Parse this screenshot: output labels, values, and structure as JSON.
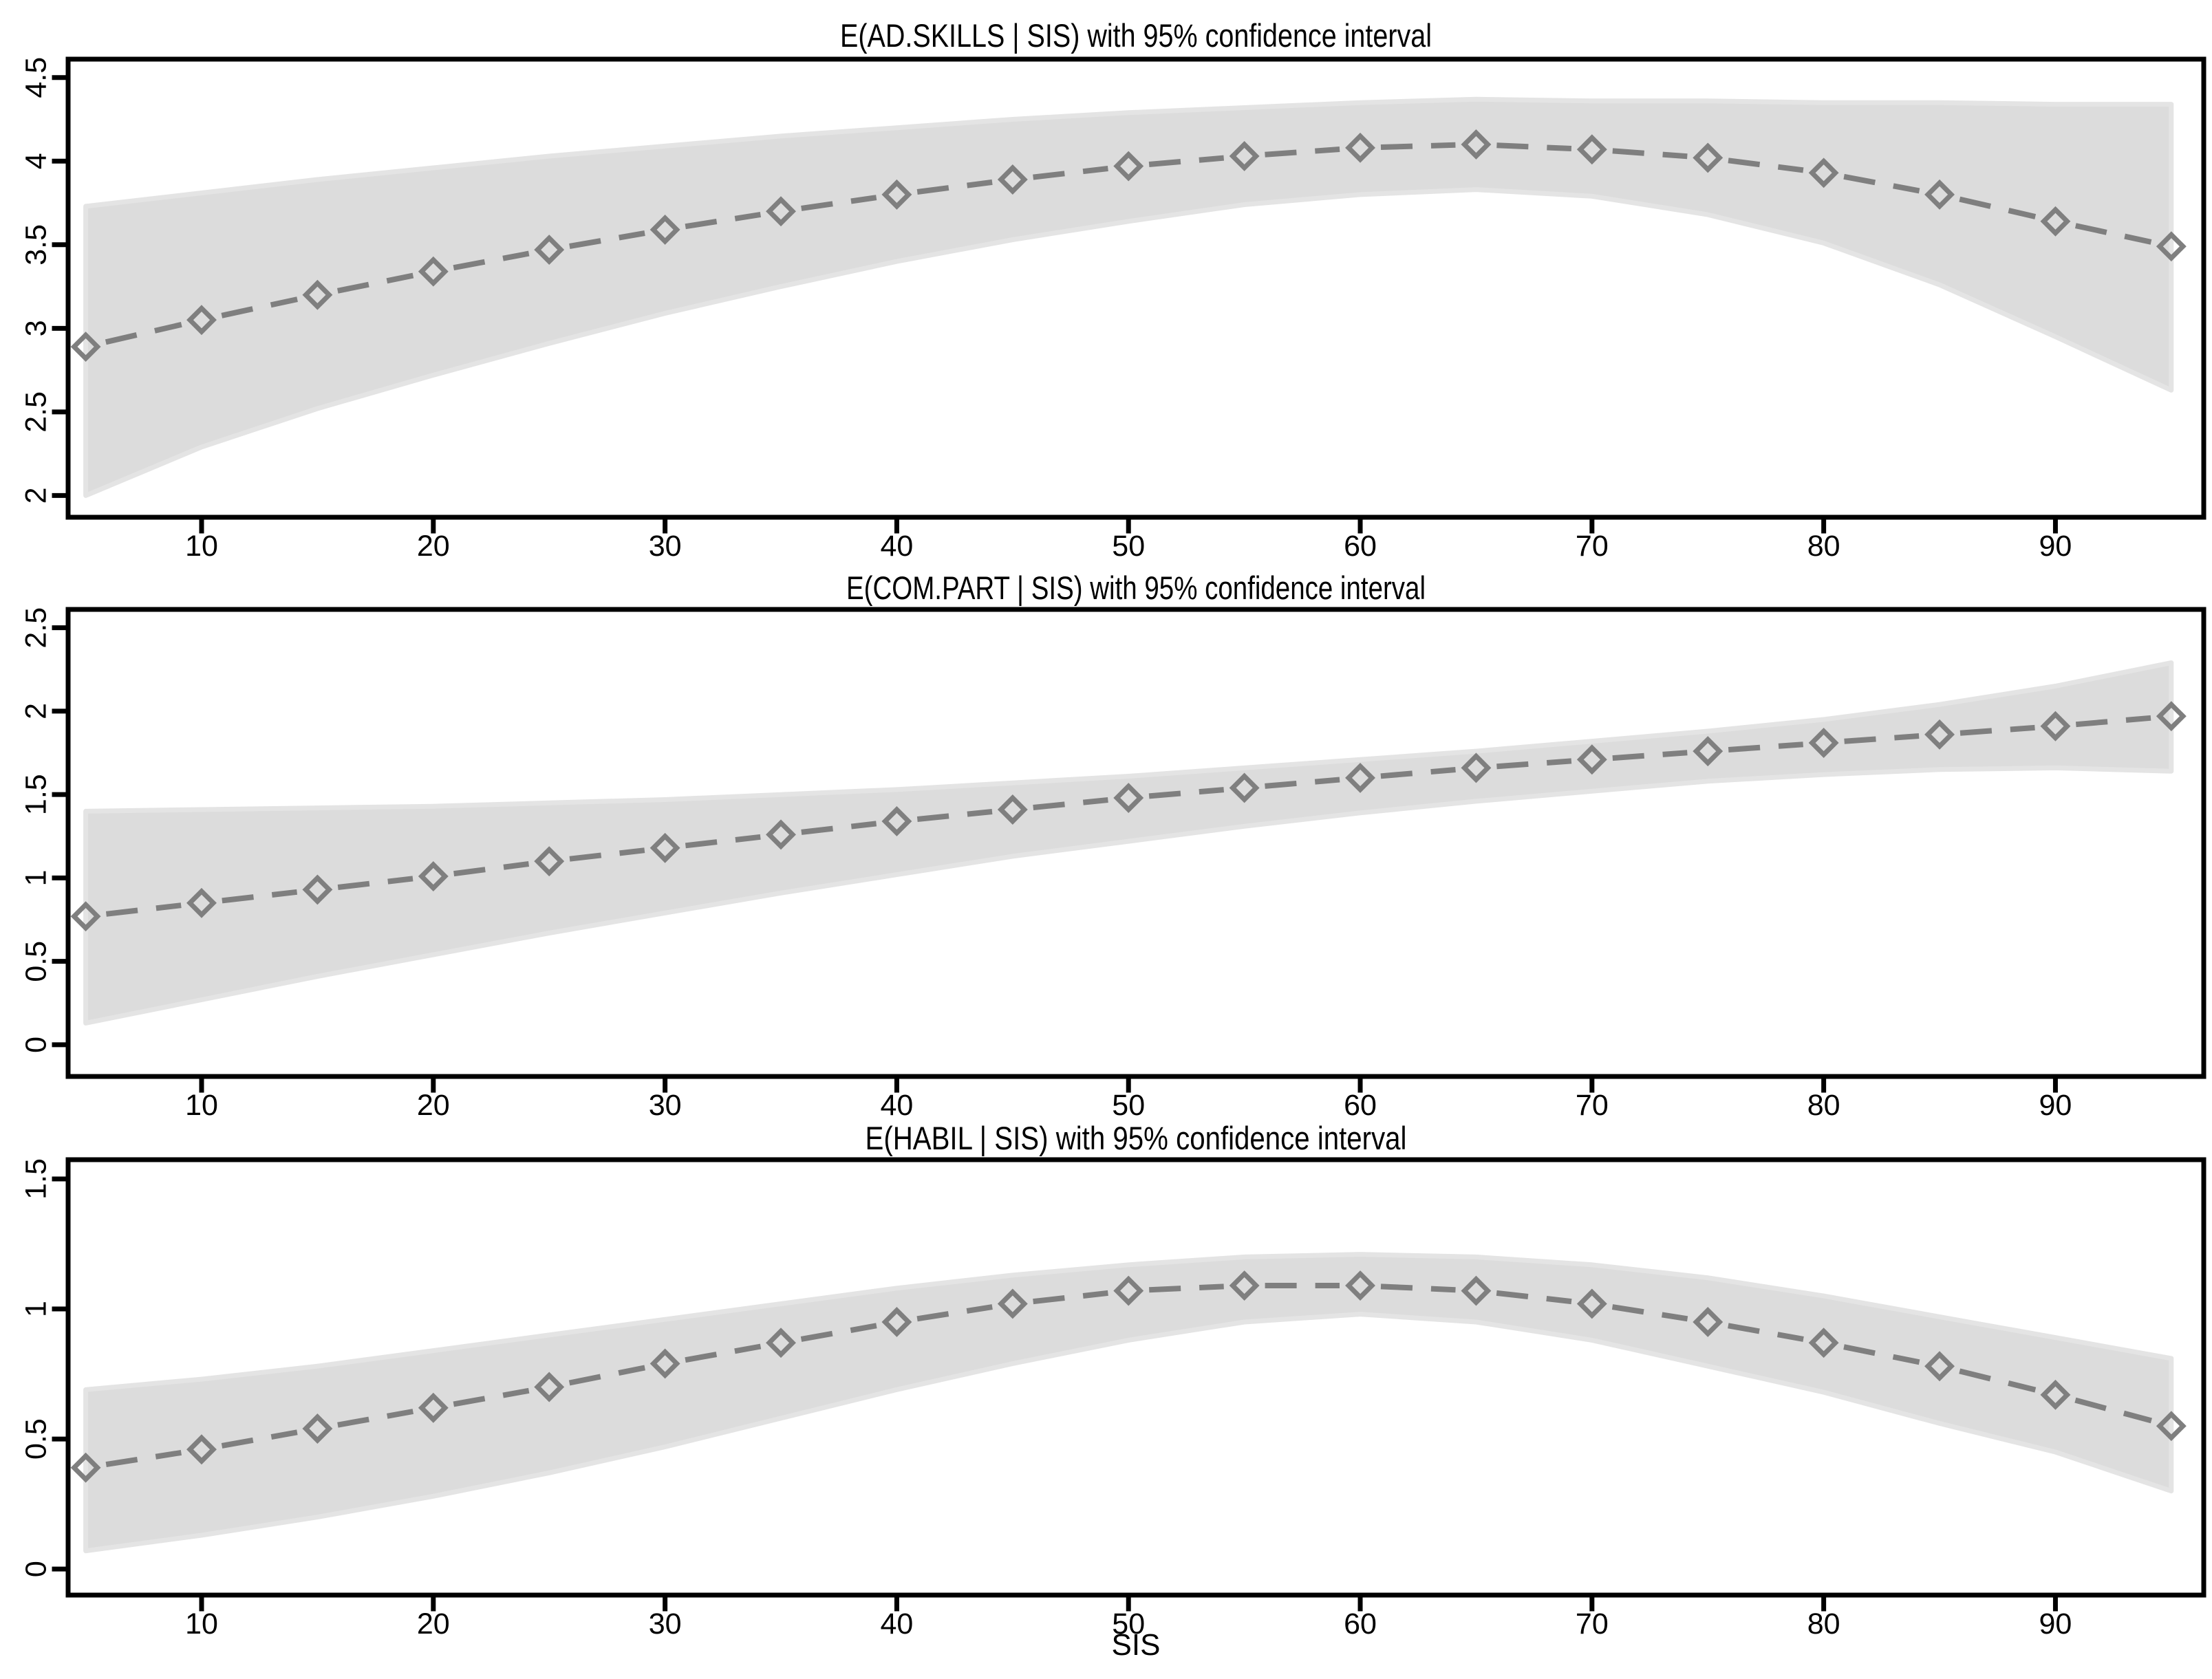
{
  "figure": {
    "xlabel": "SIS",
    "background": "#ffffff",
    "axis_color": "#000000",
    "band_fill": "#DCDCDC",
    "band_border": "#E4E4E4",
    "line_color": "#7F7F7F",
    "marker": "open-diamond-icon",
    "line_style": "dashed"
  },
  "chart_data": [
    {
      "type": "line",
      "title": "E(AD.SKILLS | SIS) with 95% confidence interval",
      "xlabel": "",
      "ylabel": "",
      "x": [
        5,
        10,
        15,
        20,
        25,
        30,
        35,
        40,
        45,
        50,
        55,
        60,
        65,
        70,
        75,
        80,
        85,
        90,
        95
      ],
      "series": [
        {
          "name": "mean",
          "values": [
            2.89,
            3.05,
            3.2,
            3.34,
            3.47,
            3.59,
            3.7,
            3.8,
            3.89,
            3.97,
            4.03,
            4.08,
            4.1,
            4.07,
            4.02,
            3.93,
            3.8,
            3.64,
            3.49
          ]
        },
        {
          "name": "upper95",
          "values": [
            3.73,
            3.81,
            3.89,
            3.96,
            4.03,
            4.09,
            4.15,
            4.2,
            4.25,
            4.29,
            4.32,
            4.35,
            4.37,
            4.36,
            4.36,
            4.35,
            4.35,
            4.34,
            4.34
          ]
        },
        {
          "name": "lower95",
          "values": [
            2.0,
            2.29,
            2.52,
            2.72,
            2.91,
            3.09,
            3.25,
            3.4,
            3.53,
            3.64,
            3.74,
            3.8,
            3.83,
            3.79,
            3.68,
            3.51,
            3.26,
            2.95,
            2.63
          ]
        }
      ],
      "xlim": [
        4.24,
        96.4
      ],
      "ylim": [
        1.87,
        4.61
      ],
      "xticks": [
        10,
        20,
        30,
        40,
        50,
        60,
        70,
        80,
        90
      ],
      "xtick_labels": [
        "10",
        "20",
        "30",
        "40",
        "50",
        "60",
        "70",
        "80",
        "90"
      ],
      "yticks": [
        2,
        2.5,
        3,
        3.5,
        4,
        4.5
      ],
      "ytick_labels": [
        "2",
        "2.5",
        "3",
        "3.5",
        "4",
        "4.5"
      ],
      "grid": "off",
      "legend": "none"
    },
    {
      "type": "line",
      "title": "E(COM.PART | SIS) with 95% confidence interval",
      "xlabel": "",
      "ylabel": "",
      "x": [
        5,
        10,
        15,
        20,
        25,
        30,
        35,
        40,
        45,
        50,
        55,
        60,
        65,
        70,
        75,
        80,
        85,
        90,
        95
      ],
      "series": [
        {
          "name": "mean",
          "values": [
            0.77,
            0.85,
            0.93,
            1.01,
            1.1,
            1.18,
            1.26,
            1.34,
            1.41,
            1.48,
            1.54,
            1.6,
            1.66,
            1.71,
            1.76,
            1.81,
            1.86,
            1.91,
            1.97
          ]
        },
        {
          "name": "upper95",
          "values": [
            1.4,
            1.41,
            1.42,
            1.43,
            1.45,
            1.47,
            1.5,
            1.53,
            1.57,
            1.61,
            1.66,
            1.71,
            1.76,
            1.82,
            1.88,
            1.95,
            2.04,
            2.15,
            2.29
          ]
        },
        {
          "name": "lower95",
          "values": [
            0.13,
            0.27,
            0.41,
            0.54,
            0.67,
            0.79,
            0.91,
            1.02,
            1.13,
            1.22,
            1.31,
            1.39,
            1.46,
            1.52,
            1.58,
            1.62,
            1.65,
            1.66,
            1.64
          ]
        }
      ],
      "xlim": [
        4.24,
        96.4
      ],
      "ylim": [
        -0.19,
        2.61
      ],
      "xticks": [
        10,
        20,
        30,
        40,
        50,
        60,
        70,
        80,
        90
      ],
      "xtick_labels": [
        "10",
        "20",
        "30",
        "40",
        "50",
        "60",
        "70",
        "80",
        "90"
      ],
      "yticks": [
        0,
        0.5,
        1,
        1.5,
        2,
        2.5
      ],
      "ytick_labels": [
        "0",
        "0.5",
        "1",
        "1.5",
        "2",
        "2.5"
      ],
      "grid": "off",
      "legend": "none"
    },
    {
      "type": "line",
      "title": "E(HABIL | SIS) with 95% confidence interval",
      "xlabel": "SIS",
      "ylabel": "",
      "x": [
        5,
        10,
        15,
        20,
        25,
        30,
        35,
        40,
        45,
        50,
        55,
        60,
        65,
        70,
        75,
        80,
        85,
        90,
        95
      ],
      "series": [
        {
          "name": "mean",
          "values": [
            0.39,
            0.46,
            0.54,
            0.62,
            0.7,
            0.79,
            0.87,
            0.95,
            1.02,
            1.07,
            1.09,
            1.09,
            1.07,
            1.02,
            0.95,
            0.87,
            0.78,
            0.67,
            0.55
          ]
        },
        {
          "name": "upper95",
          "values": [
            0.69,
            0.73,
            0.78,
            0.84,
            0.9,
            0.96,
            1.02,
            1.08,
            1.13,
            1.17,
            1.2,
            1.21,
            1.2,
            1.17,
            1.12,
            1.05,
            0.97,
            0.89,
            0.81
          ]
        },
        {
          "name": "lower95",
          "values": [
            0.07,
            0.13,
            0.2,
            0.28,
            0.37,
            0.47,
            0.58,
            0.69,
            0.79,
            0.88,
            0.95,
            0.98,
            0.95,
            0.88,
            0.78,
            0.68,
            0.56,
            0.45,
            0.3
          ]
        }
      ],
      "xlim": [
        4.24,
        96.4
      ],
      "ylim": [
        -0.1,
        1.574
      ],
      "xticks": [
        10,
        20,
        30,
        40,
        50,
        60,
        70,
        80,
        90
      ],
      "xtick_labels": [
        "10",
        "20",
        "30",
        "40",
        "50",
        "60",
        "70",
        "80",
        "90"
      ],
      "yticks": [
        0,
        0.5,
        1,
        1.5
      ],
      "ytick_labels": [
        "0",
        "0.5",
        "1",
        "1.5"
      ],
      "grid": "off",
      "legend": "none"
    }
  ]
}
